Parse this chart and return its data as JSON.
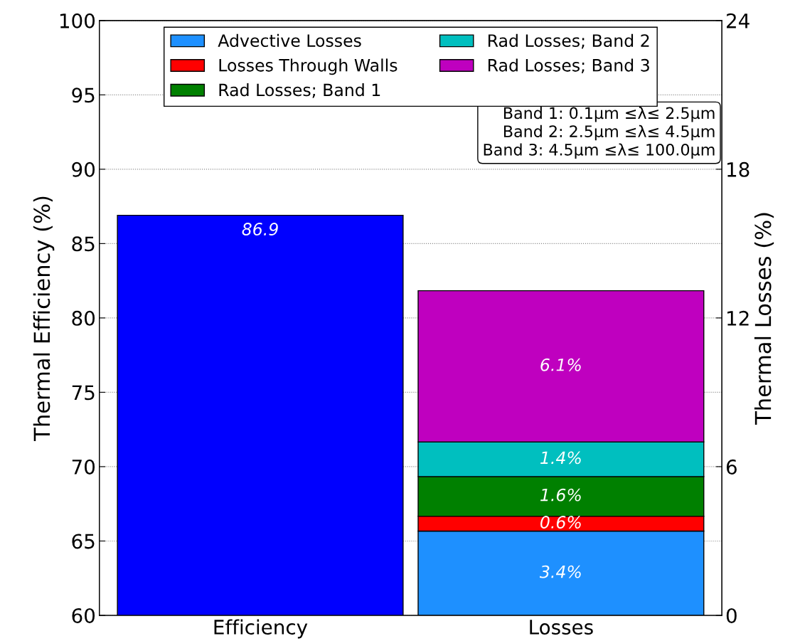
{
  "chart_data": {
    "type": "bar",
    "categories": [
      "Efficiency",
      "Losses"
    ],
    "ylabel": "Thermal Efficiency (%)",
    "y2label": "Thermal Losses (%)",
    "ylim": [
      60,
      100
    ],
    "yticks": [
      60,
      65,
      70,
      75,
      80,
      85,
      90,
      95,
      100
    ],
    "y2lim": [
      0,
      24
    ],
    "y2ticks": [
      0,
      6,
      12,
      18,
      24
    ],
    "stacked": true,
    "grid": "y",
    "legend": "top",
    "annotations": [
      "Band 1: 0.1μm ≤λ≤ 2.5μm\nBand 2: 2.5μm ≤λ≤ 4.5μm\nBand 3: 4.5μm ≤λ≤ 100.0μm"
    ],
    "series": [
      {
        "color": "#0000ff",
        "values": [
          86.9,
          null
        ],
        "value_labels": [
          "86.9",
          null
        ]
      },
      {
        "name": "Advective Losses",
        "color": "#1e90ff",
        "axis": "y2",
        "values": [
          null,
          3.4
        ],
        "value_labels": [
          null,
          "3.4%"
        ]
      },
      {
        "name": "Losses Through Walls",
        "color": "#ff0000",
        "axis": "y2",
        "values": [
          null,
          0.6
        ],
        "value_labels": [
          null,
          "0.6%"
        ]
      },
      {
        "name": "Rad Losses; Band 1",
        "color": "#008000",
        "axis": "y2",
        "values": [
          null,
          1.6
        ],
        "value_labels": [
          null,
          "1.6%"
        ]
      },
      {
        "name": "Rad Losses; Band 2",
        "color": "#00bfbf",
        "axis": "y2",
        "values": [
          null,
          1.4
        ],
        "value_labels": [
          null,
          "1.4%"
        ]
      },
      {
        "name": "Rad Losses; Band 3",
        "color": "#bf00bf",
        "axis": "y2",
        "values": [
          null,
          6.1
        ],
        "value_labels": [
          null,
          "6.1%"
        ]
      }
    ]
  }
}
